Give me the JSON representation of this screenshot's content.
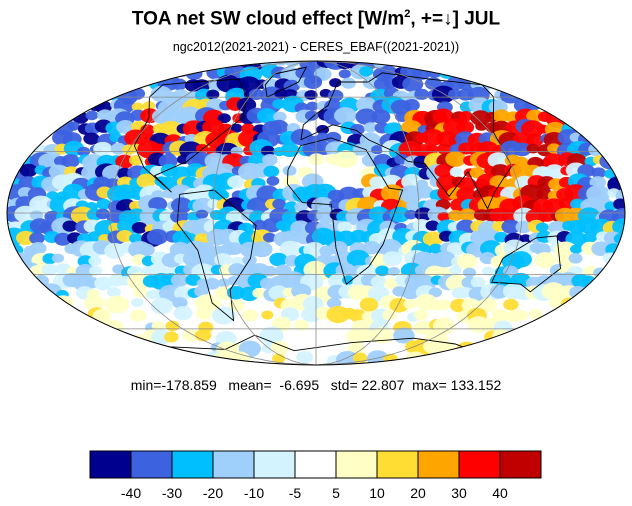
{
  "title": {
    "main": "TOA net SW cloud effect [W/m",
    "superscript": "2",
    "suffix": ", +=↓]  JUL"
  },
  "subtitle": "ngc2012(2021-2021) - CERES_EBAF((2021-2021))",
  "stats": {
    "min_label": "min=",
    "min": "-178.859",
    "mean_label": "mean=",
    "mean": "-6.695",
    "std_label": "std=",
    "std": "22.807",
    "max_label": "max=",
    "max": "133.152"
  },
  "map": {
    "projection": "mollweide",
    "field": "TOA net SW cloud effect difference",
    "month": "JUL",
    "graticule": true,
    "coastlines": true
  },
  "colorbar": {
    "levels": [
      "-40",
      "-30",
      "-20",
      "-10",
      "-5",
      "5",
      "10",
      "20",
      "30",
      "40"
    ],
    "colors": [
      "#00008f",
      "#3d62e0",
      "#00bfff",
      "#9fcffb",
      "#d3f3ff",
      "#ffffff",
      "#ffffc5",
      "#ffdd33",
      "#ffa500",
      "#ff0000",
      "#c00000"
    ]
  }
}
